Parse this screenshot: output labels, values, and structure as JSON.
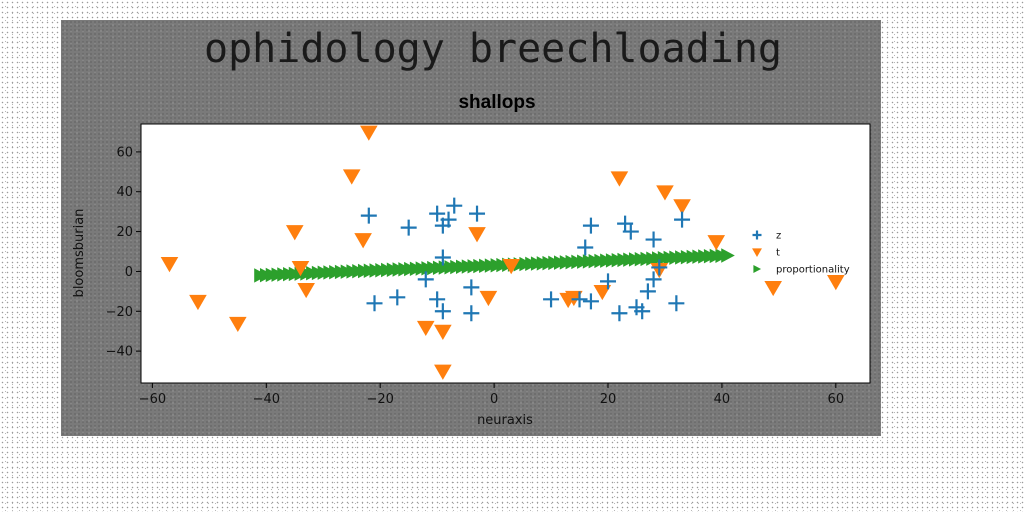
{
  "chart_data": {
    "type": "scatter",
    "suptitle": "ophidology breechloading",
    "title": "shallops",
    "xlabel": "neuraxis",
    "ylabel": "bloomsburian",
    "xlim": [
      -62,
      66
    ],
    "ylim": [
      -56,
      74
    ],
    "xticks": [
      -60,
      -40,
      -20,
      0,
      20,
      40,
      60
    ],
    "yticks": [
      -40,
      -20,
      0,
      20,
      40,
      60
    ],
    "grid": false,
    "legend_position": "right",
    "series": [
      {
        "name": "z",
        "marker": "plus",
        "color": "#1f77b4",
        "points": [
          [
            -22,
            28
          ],
          [
            -10,
            29
          ],
          [
            -9,
            23
          ],
          [
            -8,
            26
          ],
          [
            -7,
            33
          ],
          [
            -3,
            29
          ],
          [
            -15,
            22
          ],
          [
            -9,
            7
          ],
          [
            -12,
            -4
          ],
          [
            -4,
            -8
          ],
          [
            -10,
            -14
          ],
          [
            -9,
            -20
          ],
          [
            -4,
            -21
          ],
          [
            -21,
            -16
          ],
          [
            -17,
            -13
          ],
          [
            10,
            -14
          ],
          [
            15,
            -14
          ],
          [
            17,
            -15
          ],
          [
            20,
            -5
          ],
          [
            22,
            -21
          ],
          [
            25,
            -18
          ],
          [
            26,
            -20
          ],
          [
            27,
            -10
          ],
          [
            28,
            -4
          ],
          [
            29,
            2
          ],
          [
            28,
            16
          ],
          [
            32,
            -16
          ],
          [
            33,
            26
          ],
          [
            23,
            24
          ],
          [
            24,
            20
          ],
          [
            17,
            23
          ],
          [
            16,
            12
          ]
        ]
      },
      {
        "name": "t",
        "marker": "triangle-down",
        "color": "#ff7f0e",
        "points": [
          [
            -57,
            4
          ],
          [
            -52,
            -15
          ],
          [
            -45,
            -26
          ],
          [
            -35,
            20
          ],
          [
            -34,
            2
          ],
          [
            -33,
            -9
          ],
          [
            -25,
            48
          ],
          [
            -23,
            16
          ],
          [
            -22,
            70
          ],
          [
            -12,
            -28
          ],
          [
            -9,
            -30
          ],
          [
            -9,
            -50
          ],
          [
            -3,
            19
          ],
          [
            -1,
            -13
          ],
          [
            3,
            3
          ],
          [
            13,
            -14
          ],
          [
            14,
            -13
          ],
          [
            19,
            -10
          ],
          [
            22,
            47
          ],
          [
            29,
            1
          ],
          [
            30,
            40
          ],
          [
            33,
            33
          ],
          [
            39,
            15
          ],
          [
            49,
            -8
          ],
          [
            60,
            -5
          ]
        ]
      },
      {
        "name": "proportionality",
        "marker": "triangle-right",
        "color": "#2ca02c",
        "x_range": [
          -41,
          41
        ],
        "y_range": [
          -2,
          8
        ],
        "count": 82
      }
    ]
  }
}
